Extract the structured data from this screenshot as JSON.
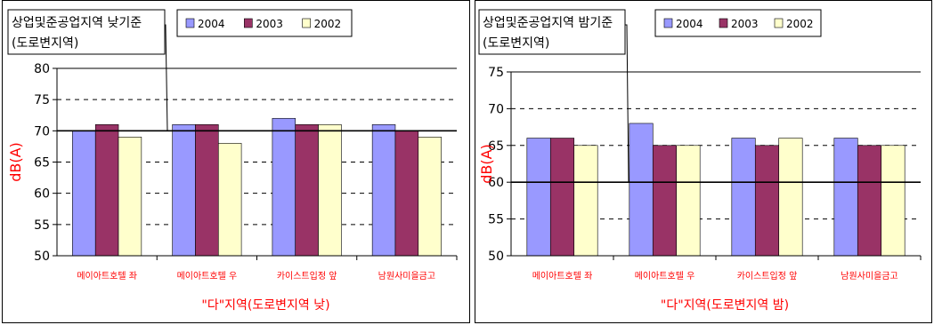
{
  "colors": {
    "2004": "#9999ff",
    "2003": "#993366",
    "2002": "#ffffcc",
    "axis_label": "#ff0000",
    "standard_line": "#000000"
  },
  "chart_data": [
    {
      "type": "bar",
      "categories": [
        "메이아트호텔 좌",
        "메이아트호텔 우",
        "카이스트입정 앞",
        "남원사미을금고"
      ],
      "series": [
        {
          "name": "2004",
          "values": [
            70,
            71,
            72,
            71
          ]
        },
        {
          "name": "2003",
          "values": [
            71,
            71,
            71,
            70
          ]
        },
        {
          "name": "2002",
          "values": [
            69,
            68,
            71,
            69
          ]
        }
      ],
      "ylabel": "dB(A)",
      "xlabel": "\"다\"지역(도로변지역 낮)",
      "ylim": [
        50,
        80
      ],
      "yticks": [
        50,
        55,
        60,
        65,
        70,
        75,
        80
      ],
      "standard_value": 70,
      "standard_label": [
        "상업및준공업지역 낮기준",
        "(도로변지역)"
      ],
      "grid": "dashed horizontal",
      "legend": "top"
    },
    {
      "type": "bar",
      "categories": [
        "메이아트호텔 좌",
        "메이아트호텔 우",
        "카이스트입정 앞",
        "남원사미을금고"
      ],
      "series": [
        {
          "name": "2004",
          "values": [
            66,
            68,
            66,
            66
          ]
        },
        {
          "name": "2003",
          "values": [
            66,
            65,
            65,
            65
          ]
        },
        {
          "name": "2002",
          "values": [
            65,
            65,
            66,
            65
          ]
        }
      ],
      "ylabel": "dB(A)",
      "xlabel": "\"다\"지역(도로변지역 밤)",
      "ylim": [
        50,
        75
      ],
      "yticks": [
        50,
        55,
        60,
        65,
        70,
        75
      ],
      "standard_value": 60,
      "standard_label": [
        "상업및준공업지역 밤기준",
        "(도로변지역)"
      ],
      "grid": "dashed horizontal",
      "legend": "top"
    }
  ]
}
